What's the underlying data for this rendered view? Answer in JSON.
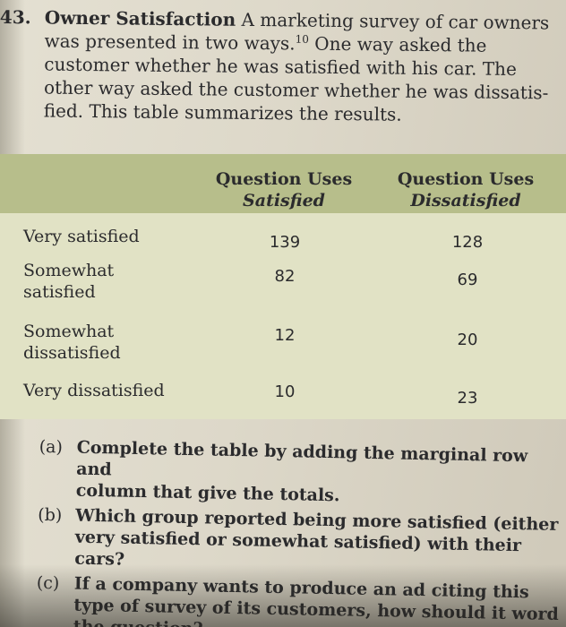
{
  "problem": {
    "number": "43.",
    "title": "Owner Satisfaction",
    "lines": [
      " A marketing survey of car owners",
      "was presented in two ways.",
      "customer whether he was satisfied with his car. The",
      "other way asked the customer whether he was dissatis-",
      "fied. This table summarizes the results."
    ],
    "footnote": "10",
    "line2_rest": " One way asked the"
  },
  "table": {
    "col1": {
      "top": "Question Uses",
      "bottom": "Satisfied"
    },
    "col2": {
      "top": "Question Uses",
      "bottom": "Dissatisfied"
    },
    "rows": [
      {
        "label": "Very satisfied",
        "label2": "",
        "v1": "139",
        "v2": "128"
      },
      {
        "label": "Somewhat",
        "label2": "satisfied",
        "v1": "82",
        "v2": "69"
      },
      {
        "label": "Somewhat",
        "label2": "dissatisfied",
        "v1": "12",
        "v2": "20"
      },
      {
        "label": "Very dissatisfied",
        "label2": "",
        "v1": "10",
        "v2": "23"
      }
    ]
  },
  "questions": [
    {
      "letter": "(a)",
      "lines": [
        "Complete the table by adding the marginal row and",
        "column that give the totals."
      ]
    },
    {
      "letter": "(b)",
      "lines": [
        "Which group reported being more satisfied (either",
        "very satisfied or somewhat satisfied) with their cars?"
      ]
    },
    {
      "letter": "(c)",
      "lines": [
        "If a company wants to produce an ad citing this",
        "type of survey of its customers, how should it word",
        "the question?"
      ]
    }
  ]
}
